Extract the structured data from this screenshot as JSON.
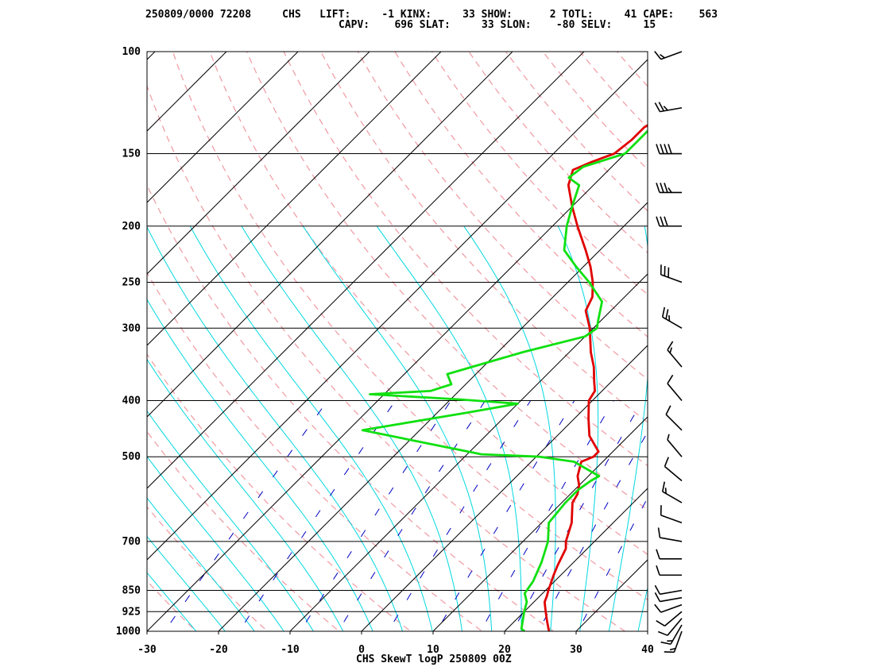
{
  "header": {
    "line1": "250809/0000 72208     CHS   LIFT:     -1 KINX:     33 SHOW:      2 TOTL:     41 CAPE:    563",
    "line2": "CAPV:    696 SLAT:     33 SLON:    -80 SELV:     15"
  },
  "footer_title": "CHS SkewT logP 250809 00Z",
  "colors": {
    "temperature": "#e00000",
    "dewpoint": "#10e010",
    "moist_adiabat": "#00d8e0",
    "dry_adiabat": "#f0a0a8",
    "mixing_ratio": "#0000c0",
    "isotherm": "#000000",
    "wind_barb": "#000000"
  },
  "chart_data": {
    "type": "line",
    "title": "CHS SkewT logP 250809 00Z",
    "xlim": [
      -30,
      40
    ],
    "ylim": [
      1000,
      100
    ],
    "y_scale": "log",
    "grid": true,
    "x_ticks": [
      -30,
      -20,
      -10,
      0,
      10,
      20,
      30,
      40
    ],
    "y_ticks": [
      100,
      150,
      200,
      250,
      300,
      400,
      500,
      700,
      850,
      925,
      1000
    ],
    "series": [
      {
        "role": "temperature",
        "points": [
          {
            "p": 1000,
            "t": 26.2
          },
          {
            "p": 960,
            "t": 24.5
          },
          {
            "p": 925,
            "t": 23.0
          },
          {
            "p": 890,
            "t": 21.5
          },
          {
            "p": 870,
            "t": 21.0
          },
          {
            "p": 850,
            "t": 20.4
          },
          {
            "p": 800,
            "t": 19.0
          },
          {
            "p": 770,
            "t": 18.2
          },
          {
            "p": 720,
            "t": 17.0
          },
          {
            "p": 700,
            "t": 16.0
          },
          {
            "p": 650,
            "t": 14.2
          },
          {
            "p": 600,
            "t": 11.5
          },
          {
            "p": 580,
            "t": 11.0
          },
          {
            "p": 560,
            "t": 10.0
          },
          {
            "p": 540,
            "t": 8.5
          },
          {
            "p": 510,
            "t": 7.0
          },
          {
            "p": 500,
            "t": 8.0
          },
          {
            "p": 490,
            "t": 8.0
          },
          {
            "p": 460,
            "t": 4.5
          },
          {
            "p": 430,
            "t": 2.0
          },
          {
            "p": 400,
            "t": -0.5
          },
          {
            "p": 385,
            "t": -1.0
          },
          {
            "p": 370,
            "t": -2.5
          },
          {
            "p": 350,
            "t": -4.5
          },
          {
            "p": 330,
            "t": -7.0
          },
          {
            "p": 300,
            "t": -10.5
          },
          {
            "p": 280,
            "t": -13.5
          },
          {
            "p": 265,
            "t": -14.5
          },
          {
            "p": 250,
            "t": -16.5
          },
          {
            "p": 235,
            "t": -19.0
          },
          {
            "p": 220,
            "t": -22.0
          },
          {
            "p": 200,
            "t": -26.5
          },
          {
            "p": 185,
            "t": -30.0
          },
          {
            "p": 170,
            "t": -33.5
          },
          {
            "p": 160,
            "t": -35.0
          },
          {
            "p": 155,
            "t": -33.5
          },
          {
            "p": 150,
            "t": -31.5
          },
          {
            "p": 142,
            "t": -31.0
          },
          {
            "p": 135,
            "t": -31.0
          },
          {
            "p": 130,
            "t": -30.0
          },
          {
            "p": 120,
            "t": -28.0
          },
          {
            "p": 110,
            "t": -23.0
          },
          {
            "p": 105,
            "t": -22.0
          },
          {
            "p": 100,
            "t": -21.5
          }
        ]
      },
      {
        "role": "dewpoint",
        "points": [
          {
            "p": 1000,
            "t": 22.8
          },
          {
            "p": 990,
            "t": 22.0
          },
          {
            "p": 925,
            "t": 20.0
          },
          {
            "p": 890,
            "t": 19.0
          },
          {
            "p": 860,
            "t": 17.5
          },
          {
            "p": 820,
            "t": 17.0
          },
          {
            "p": 760,
            "t": 15.5
          },
          {
            "p": 700,
            "t": 13.5
          },
          {
            "p": 650,
            "t": 11.0
          },
          {
            "p": 600,
            "t": 10.5
          },
          {
            "p": 570,
            "t": 10.5
          },
          {
            "p": 550,
            "t": 11.0
          },
          {
            "p": 540,
            "t": 11.5
          },
          {
            "p": 510,
            "t": 6.0
          },
          {
            "p": 500,
            "t": 0.5
          },
          {
            "p": 495,
            "t": -8.0
          },
          {
            "p": 450,
            "t": -28.0
          },
          {
            "p": 420,
            "t": -16.0
          },
          {
            "p": 405,
            "t": -10.0
          },
          {
            "p": 398,
            "t": -19.0
          },
          {
            "p": 390,
            "t": -32.0
          },
          {
            "p": 385,
            "t": -24.0
          },
          {
            "p": 375,
            "t": -22.0
          },
          {
            "p": 360,
            "t": -24.0
          },
          {
            "p": 330,
            "t": -16.5
          },
          {
            "p": 310,
            "t": -10.0
          },
          {
            "p": 300,
            "t": -9.5
          },
          {
            "p": 290,
            "t": -10.5
          },
          {
            "p": 270,
            "t": -12.5
          },
          {
            "p": 250,
            "t": -17.0
          },
          {
            "p": 235,
            "t": -21.0
          },
          {
            "p": 220,
            "t": -25.0
          },
          {
            "p": 200,
            "t": -28.0
          },
          {
            "p": 185,
            "t": -30.0
          },
          {
            "p": 170,
            "t": -32.0
          },
          {
            "p": 165,
            "t": -34.5
          },
          {
            "p": 158,
            "t": -34.0
          },
          {
            "p": 150,
            "t": -30.0
          },
          {
            "p": 142,
            "t": -30.0
          },
          {
            "p": 130,
            "t": -30.0
          },
          {
            "p": 120,
            "t": -29.0
          },
          {
            "p": 110,
            "t": -23.0
          },
          {
            "p": 100,
            "t": -23.0
          }
        ]
      }
    ],
    "winds": [
      {
        "p": 1000,
        "dir": 200,
        "spd": 15
      },
      {
        "p": 975,
        "dir": 210,
        "spd": 15
      },
      {
        "p": 950,
        "dir": 220,
        "spd": 10
      },
      {
        "p": 925,
        "dir": 230,
        "spd": 10
      },
      {
        "p": 900,
        "dir": 250,
        "spd": 10
      },
      {
        "p": 875,
        "dir": 260,
        "spd": 10
      },
      {
        "p": 850,
        "dir": 260,
        "spd": 10
      },
      {
        "p": 800,
        "dir": 270,
        "spd": 10
      },
      {
        "p": 750,
        "dir": 270,
        "spd": 10
      },
      {
        "p": 700,
        "dir": 280,
        "spd": 10
      },
      {
        "p": 650,
        "dir": 290,
        "spd": 10
      },
      {
        "p": 600,
        "dir": 300,
        "spd": 15
      },
      {
        "p": 550,
        "dir": 310,
        "spd": 10
      },
      {
        "p": 500,
        "dir": 320,
        "spd": 5
      },
      {
        "p": 450,
        "dir": 315,
        "spd": 10
      },
      {
        "p": 400,
        "dir": 320,
        "spd": 10
      },
      {
        "p": 350,
        "dir": 320,
        "spd": 15
      },
      {
        "p": 300,
        "dir": 300,
        "spd": 25
      },
      {
        "p": 250,
        "dir": 290,
        "spd": 30
      },
      {
        "p": 200,
        "dir": 270,
        "spd": 30
      },
      {
        "p": 175,
        "dir": 270,
        "spd": 35
      },
      {
        "p": 150,
        "dir": 270,
        "spd": 40
      },
      {
        "p": 125,
        "dir": 260,
        "spd": 25
      },
      {
        "p": 100,
        "dir": 250,
        "spd": 15
      }
    ]
  }
}
